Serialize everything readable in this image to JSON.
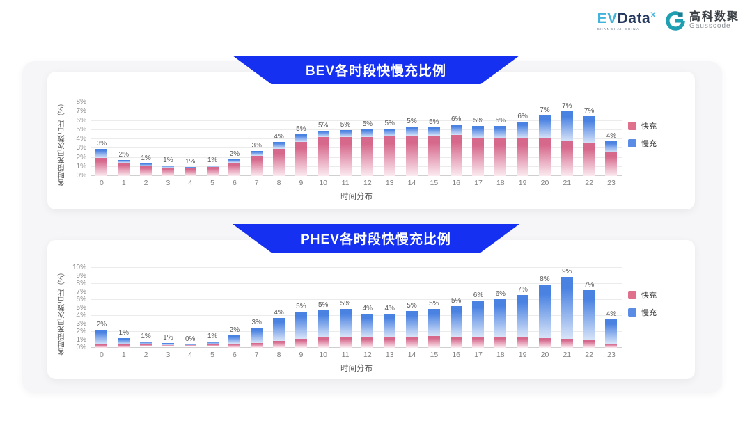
{
  "logos": {
    "evdata": {
      "ev": "EV",
      "data": "Data",
      "sup": "X",
      "tagline": "SHANGHAI CHINA"
    },
    "gausscode": {
      "cn": "高科数聚",
      "en": "Gausscode"
    }
  },
  "colors": {
    "banner_blue": "#1530F0",
    "fast_legend": "#E0718C",
    "slow_legend": "#5A8CE6",
    "fast_gradient_top": "#D6688C",
    "fast_gradient_bottom": "#FBEBF0",
    "slow_gradient_top": "#4A82E2",
    "slow_gradient_bottom": "#D8E4F8",
    "gausscode_teal": "#1F9FB2"
  },
  "chart_data": [
    {
      "type": "bar",
      "stacked": true,
      "title": "BEV各时段快慢充比例",
      "xlabel": "时间分布",
      "ylabel": "各时段充电次数占比（%）",
      "ylim": [
        0,
        8
      ],
      "ytick_step": 1,
      "grid": true,
      "legend_position": "right",
      "categories": [
        "0",
        "1",
        "2",
        "3",
        "4",
        "5",
        "6",
        "7",
        "8",
        "9",
        "10",
        "11",
        "12",
        "13",
        "14",
        "15",
        "16",
        "17",
        "18",
        "19",
        "20",
        "21",
        "22",
        "23"
      ],
      "bar_labels": [
        "3%",
        "2%",
        "1%",
        "1%",
        "1%",
        "1%",
        "2%",
        "3%",
        "4%",
        "5%",
        "5%",
        "5%",
        "5%",
        "5%",
        "5%",
        "5%",
        "6%",
        "5%",
        "5%",
        "6%",
        "7%",
        "7%",
        "7%",
        "4%"
      ],
      "series": [
        {
          "name": "快充",
          "color": "#E0718C",
          "values": [
            2.0,
            1.4,
            1.05,
            0.9,
            0.8,
            0.95,
            1.45,
            2.2,
            2.95,
            3.7,
            4.2,
            4.2,
            4.25,
            4.3,
            4.4,
            4.35,
            4.45,
            4.1,
            4.05,
            4.1,
            4.1,
            3.9,
            3.55,
            2.55
          ]
        },
        {
          "name": "慢充",
          "color": "#5A8CE6",
          "values": [
            0.95,
            0.35,
            0.3,
            0.2,
            0.18,
            0.22,
            0.4,
            0.55,
            0.75,
            0.85,
            0.7,
            0.75,
            0.8,
            0.8,
            0.95,
            0.95,
            1.1,
            1.3,
            1.35,
            1.8,
            2.5,
            3.35,
            2.95,
            1.25
          ]
        }
      ]
    },
    {
      "type": "bar",
      "stacked": true,
      "title": "PHEV各时段快慢充比例",
      "xlabel": "时间分布",
      "ylabel": "各时段充电次数占比（%）",
      "ylim": [
        0,
        10
      ],
      "ytick_step": 1,
      "grid": true,
      "legend_position": "right",
      "categories": [
        "0",
        "1",
        "2",
        "3",
        "4",
        "5",
        "6",
        "7",
        "8",
        "9",
        "10",
        "11",
        "12",
        "13",
        "14",
        "15",
        "16",
        "17",
        "18",
        "19",
        "20",
        "21",
        "22",
        "23"
      ],
      "bar_labels": [
        "2%",
        "1%",
        "1%",
        "1%",
        "0%",
        "1%",
        "2%",
        "3%",
        "4%",
        "5%",
        "5%",
        "5%",
        "4%",
        "4%",
        "5%",
        "5%",
        "5%",
        "6%",
        "6%",
        "7%",
        "8%",
        "9%",
        "7%",
        "4%"
      ],
      "series": [
        {
          "name": "快充",
          "color": "#E0718C",
          "values": [
            0.45,
            0.4,
            0.3,
            0.25,
            0.2,
            0.3,
            0.5,
            0.65,
            0.9,
            1.15,
            1.3,
            1.4,
            1.3,
            1.3,
            1.35,
            1.45,
            1.4,
            1.4,
            1.4,
            1.35,
            1.2,
            1.1,
            0.95,
            0.55
          ]
        },
        {
          "name": "慢充",
          "color": "#5A8CE6",
          "values": [
            1.8,
            0.85,
            0.45,
            0.4,
            0.25,
            0.45,
            1.05,
            1.9,
            2.8,
            3.4,
            3.4,
            3.5,
            2.95,
            3.0,
            3.25,
            3.4,
            3.85,
            4.5,
            4.7,
            5.3,
            6.75,
            7.85,
            6.3,
            3.0
          ]
        }
      ]
    }
  ]
}
